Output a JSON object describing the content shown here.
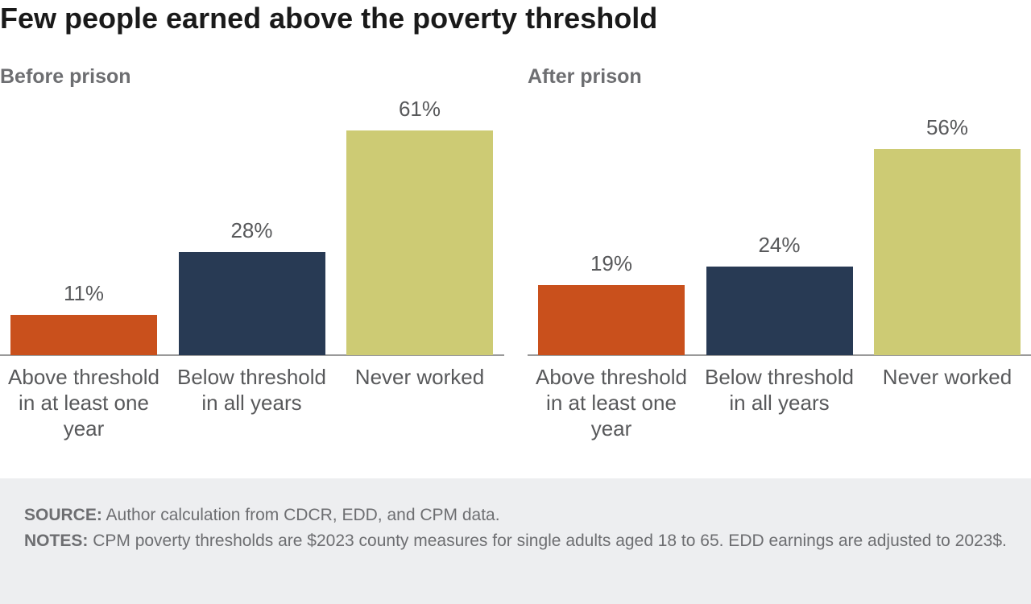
{
  "title": "Few people earned above the poverty threshold",
  "chart_data": [
    {
      "type": "bar",
      "title": "Before prison",
      "categories": [
        "Above threshold in at least one year",
        "Below threshold in all years",
        "Never worked"
      ],
      "values": [
        11,
        28,
        61
      ],
      "value_labels": [
        "11%",
        "28%",
        "61%"
      ],
      "colors": [
        "#c9501c",
        "#283a54",
        "#cdcb74"
      ]
    },
    {
      "type": "bar",
      "title": "After prison",
      "categories": [
        "Above threshold in at least one year",
        "Below threshold in all years",
        "Never worked"
      ],
      "values": [
        19,
        24,
        56
      ],
      "value_labels": [
        "19%",
        "24%",
        "56%"
      ],
      "colors": [
        "#c9501c",
        "#283a54",
        "#cdcb74"
      ]
    }
  ],
  "footer": {
    "source": {
      "label": "SOURCE:",
      "text": "Author calculation from CDCR, EDD, and CPM data."
    },
    "notes": {
      "label": "NOTES:",
      "text": "CPM poverty thresholds are $2023 county measures for single adults aged 18 to 65. EDD earnings are adjusted to 2023$."
    }
  }
}
